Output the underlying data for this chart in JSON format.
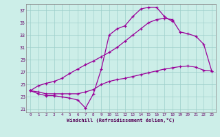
{
  "xlabel": "Windchill (Refroidissement éolien,°C)",
  "xlim": [
    -0.5,
    23.5
  ],
  "ylim": [
    20.5,
    38
  ],
  "yticks": [
    21,
    23,
    25,
    27,
    29,
    31,
    33,
    35,
    37
  ],
  "xticks": [
    0,
    1,
    2,
    3,
    4,
    5,
    6,
    7,
    8,
    9,
    10,
    11,
    12,
    13,
    14,
    15,
    16,
    17,
    18,
    19,
    20,
    21,
    22,
    23
  ],
  "background_color": "#cceee8",
  "grid_color": "#9dcfca",
  "line_color": "#990099",
  "line1_x": [
    0,
    1,
    2,
    3,
    4,
    5,
    6,
    7,
    8,
    9,
    10,
    11,
    12,
    13,
    14,
    15,
    16,
    17,
    18,
    19,
    20,
    21,
    22,
    23
  ],
  "line1_y": [
    24.0,
    23.5,
    23.2,
    23.2,
    23.0,
    22.8,
    22.5,
    21.2,
    23.5,
    27.5,
    33.0,
    34.0,
    34.5,
    36.0,
    37.2,
    37.5,
    37.5,
    36.0,
    35.2,
    null,
    null,
    null,
    null,
    null
  ],
  "line2_x": [
    0,
    1,
    2,
    3,
    4,
    5,
    6,
    7,
    8,
    9,
    10,
    11,
    12,
    13,
    14,
    15,
    16,
    17,
    18,
    19,
    20,
    21,
    22,
    23
  ],
  "line2_y": [
    24.0,
    23.8,
    23.5,
    23.5,
    23.5,
    23.5,
    23.5,
    23.8,
    24.2,
    25.0,
    25.5,
    25.8,
    26.0,
    26.3,
    26.6,
    26.9,
    27.2,
    27.5,
    27.7,
    27.9,
    28.0,
    27.8,
    27.3,
    27.2
  ],
  "line3_x": [
    0,
    1,
    2,
    3,
    4,
    5,
    6,
    7,
    8,
    9,
    10,
    11,
    12,
    13,
    14,
    15,
    16,
    17,
    18,
    19,
    20,
    21,
    22,
    23
  ],
  "line3_y": [
    24.0,
    24.8,
    25.2,
    25.5,
    26.0,
    26.8,
    27.5,
    28.2,
    28.8,
    29.5,
    30.2,
    31.0,
    32.0,
    33.0,
    34.0,
    35.0,
    35.5,
    35.7,
    35.5,
    33.5,
    33.2,
    32.8,
    31.5,
    27.2
  ]
}
